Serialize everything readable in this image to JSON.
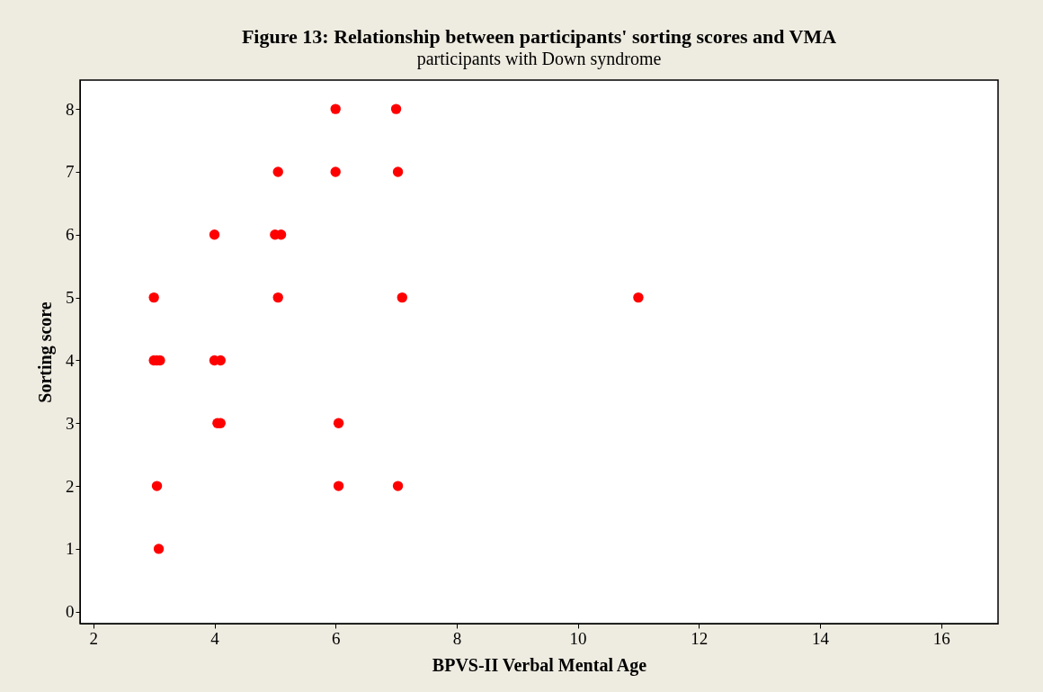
{
  "chart_data": {
    "type": "scatter",
    "title": "Figure 13: Relationship between participants' sorting scores and VMA",
    "subtitle": "participants with Down syndrome",
    "xlabel": "BPVS-II Verbal Mental Age",
    "ylabel": "Sorting score",
    "x": [
      3.0,
      3.0,
      3.05,
      3.1,
      3.05,
      3.08,
      4.0,
      4.0,
      4.1,
      4.05,
      4.1,
      5.05,
      5.0,
      5.1,
      5.05,
      6.0,
      6.0,
      6.05,
      6.05,
      7.0,
      7.03,
      7.1,
      7.03,
      11.0
    ],
    "series": [
      {
        "color": "#ff0000",
        "values": [
          5,
          4,
          4,
          4,
          2,
          1,
          6,
          4,
          4,
          3,
          3,
          7,
          6,
          6,
          5,
          8,
          7,
          3,
          2,
          8,
          7,
          5,
          2,
          5
        ]
      }
    ],
    "xlim": [
      1.78,
      16.94
    ],
    "ylim": [
      -0.19,
      8.46
    ],
    "xticks": [
      2,
      4,
      6,
      8,
      10,
      12,
      14,
      16
    ],
    "yticks": [
      0,
      1,
      2,
      3,
      4,
      5,
      6,
      7,
      8
    ],
    "grid": false,
    "legend": false,
    "marker": "circle"
  }
}
